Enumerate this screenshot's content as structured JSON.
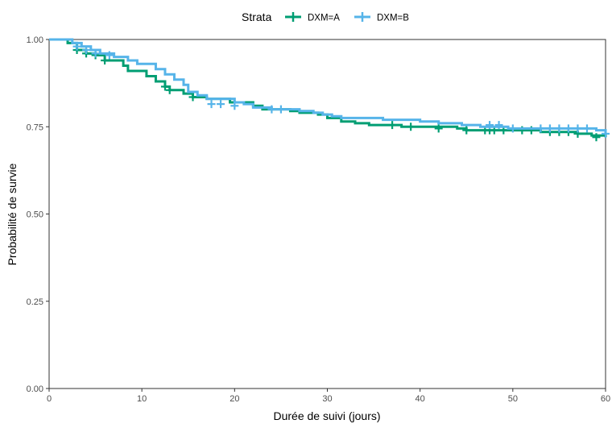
{
  "chart_data": {
    "type": "line",
    "subtype": "kaplan-meier step",
    "xlabel": "Durée de suivi (jours)",
    "ylabel": "Probabilité de survie",
    "xlim": [
      0,
      60
    ],
    "ylim": [
      0,
      1
    ],
    "x_ticks": [
      0,
      10,
      20,
      30,
      40,
      50,
      60
    ],
    "y_ticks": [
      0.0,
      0.25,
      0.5,
      0.75,
      1.0
    ],
    "x_tick_labels": [
      "0",
      "10",
      "20",
      "30",
      "40",
      "50",
      "60"
    ],
    "y_tick_labels": [
      "0.00",
      "0.25",
      "0.50",
      "0.75",
      "1.00"
    ],
    "grid": false,
    "legend": {
      "title": "Strata",
      "placement": "top",
      "entries": [
        "DXM=A",
        "DXM=B"
      ]
    },
    "series": [
      {
        "name": "DXM=A",
        "color": "#009E73",
        "steps": [
          [
            0,
            1.0
          ],
          [
            2,
            0.99
          ],
          [
            3,
            0.97
          ],
          [
            4,
            0.96
          ],
          [
            5,
            0.955
          ],
          [
            6,
            0.94
          ],
          [
            8,
            0.925
          ],
          [
            8.5,
            0.91
          ],
          [
            10.5,
            0.895
          ],
          [
            11.5,
            0.88
          ],
          [
            12.5,
            0.865
          ],
          [
            13,
            0.855
          ],
          [
            14.5,
            0.845
          ],
          [
            15.5,
            0.835
          ],
          [
            17,
            0.83
          ],
          [
            19.5,
            0.82
          ],
          [
            22,
            0.81
          ],
          [
            23,
            0.8
          ],
          [
            26,
            0.795
          ],
          [
            27,
            0.79
          ],
          [
            29,
            0.785
          ],
          [
            30,
            0.775
          ],
          [
            31.5,
            0.765
          ],
          [
            33,
            0.76
          ],
          [
            34.5,
            0.755
          ],
          [
            38,
            0.75
          ],
          [
            44,
            0.745
          ],
          [
            45,
            0.74
          ],
          [
            53,
            0.735
          ],
          [
            57,
            0.73
          ],
          [
            58.5,
            0.725
          ],
          [
            60,
            0.72
          ]
        ],
        "censors": [
          [
            3,
            0.97
          ],
          [
            4,
            0.96
          ],
          [
            5,
            0.955
          ],
          [
            6,
            0.94
          ],
          [
            12.5,
            0.865
          ],
          [
            13,
            0.855
          ],
          [
            15.5,
            0.835
          ],
          [
            37,
            0.755
          ],
          [
            39,
            0.75
          ],
          [
            42,
            0.745
          ],
          [
            45,
            0.74
          ],
          [
            47,
            0.74
          ],
          [
            47.5,
            0.74
          ],
          [
            48,
            0.74
          ],
          [
            49,
            0.74
          ],
          [
            51,
            0.74
          ],
          [
            52,
            0.74
          ],
          [
            54,
            0.735
          ],
          [
            55,
            0.735
          ],
          [
            56,
            0.735
          ],
          [
            57,
            0.73
          ],
          [
            59,
            0.72
          ]
        ]
      },
      {
        "name": "DXM=B",
        "color": "#56B4E9",
        "steps": [
          [
            0,
            1.0
          ],
          [
            2.5,
            0.99
          ],
          [
            3.5,
            0.98
          ],
          [
            4.5,
            0.97
          ],
          [
            5.5,
            0.96
          ],
          [
            7,
            0.95
          ],
          [
            8.5,
            0.94
          ],
          [
            9.5,
            0.93
          ],
          [
            11.5,
            0.915
          ],
          [
            12.5,
            0.9
          ],
          [
            13.5,
            0.885
          ],
          [
            14.5,
            0.87
          ],
          [
            15,
            0.85
          ],
          [
            16,
            0.84
          ],
          [
            17,
            0.83
          ],
          [
            20,
            0.82
          ],
          [
            21,
            0.815
          ],
          [
            22,
            0.805
          ],
          [
            24,
            0.8
          ],
          [
            27,
            0.795
          ],
          [
            28.5,
            0.79
          ],
          [
            29.5,
            0.785
          ],
          [
            30.5,
            0.78
          ],
          [
            31.5,
            0.775
          ],
          [
            36,
            0.77
          ],
          [
            40,
            0.765
          ],
          [
            42,
            0.76
          ],
          [
            44.5,
            0.755
          ],
          [
            46.5,
            0.75
          ],
          [
            49.5,
            0.745
          ],
          [
            59,
            0.74
          ],
          [
            60,
            0.73
          ]
        ],
        "censors": [
          [
            3,
            0.98
          ],
          [
            4,
            0.97
          ],
          [
            5,
            0.96
          ],
          [
            6.5,
            0.955
          ],
          [
            17.5,
            0.815
          ],
          [
            18.5,
            0.815
          ],
          [
            20,
            0.81
          ],
          [
            24,
            0.8
          ],
          [
            25,
            0.8
          ],
          [
            47.5,
            0.755
          ],
          [
            48.5,
            0.755
          ],
          [
            50,
            0.745
          ],
          [
            53,
            0.745
          ],
          [
            54,
            0.745
          ],
          [
            55,
            0.745
          ],
          [
            56,
            0.745
          ],
          [
            57,
            0.745
          ],
          [
            58,
            0.745
          ],
          [
            60,
            0.73
          ]
        ]
      }
    ]
  }
}
